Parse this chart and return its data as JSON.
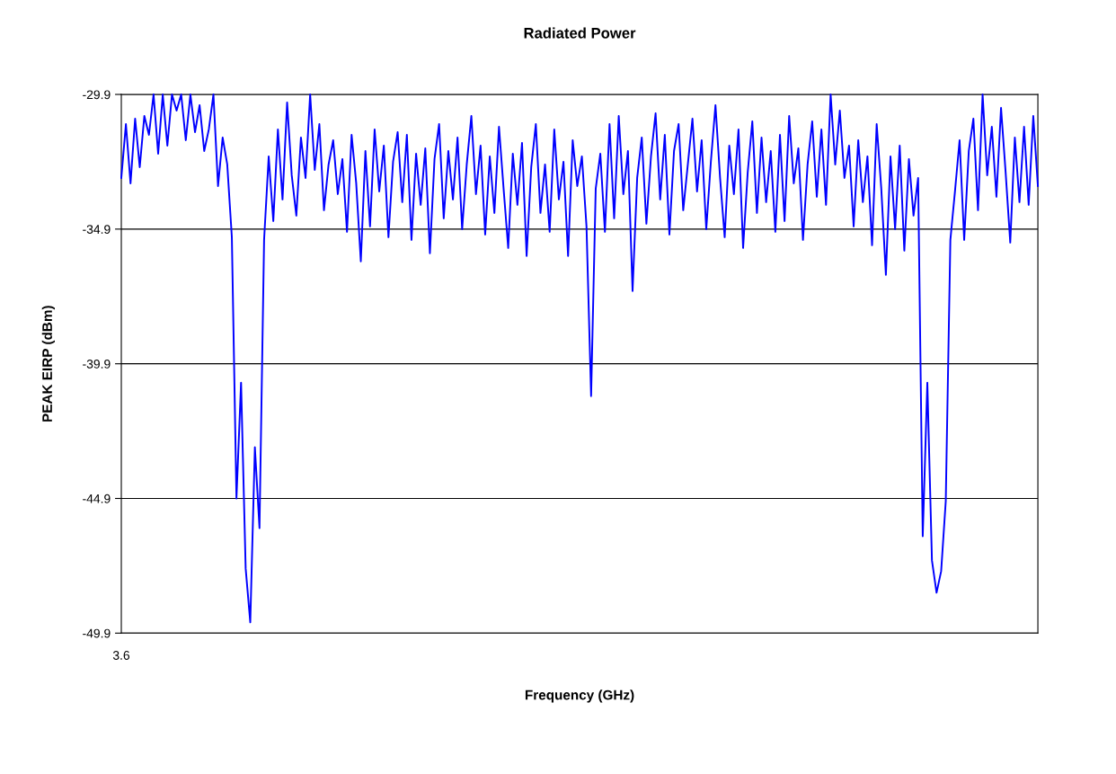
{
  "chart_data": {
    "type": "line",
    "title": "Radiated Power",
    "xlabel": "Frequency (GHz)",
    "ylabel": "PEAK EIRP (dBm)",
    "categories": [
      "3.6",
      null,
      null,
      null,
      null,
      null,
      null,
      null,
      null,
      null,
      null,
      null,
      null,
      null,
      null,
      null,
      null,
      null,
      null,
      null,
      null,
      null,
      null,
      null,
      null,
      null,
      null,
      null,
      null,
      null,
      null,
      null,
      null,
      null,
      null,
      null,
      null,
      null,
      null,
      null,
      null,
      null,
      null,
      null,
      null,
      null,
      null,
      null,
      null,
      null,
      null,
      null,
      null,
      null,
      null,
      null,
      null,
      null,
      null,
      null,
      null,
      null,
      null,
      null,
      null,
      null,
      null,
      null,
      null,
      null,
      null,
      null,
      null,
      null,
      null,
      null,
      null,
      null,
      null,
      null,
      null,
      null,
      null,
      null,
      null,
      null,
      null,
      null,
      null,
      null,
      null,
      null,
      null,
      null,
      null,
      null,
      null,
      null,
      null,
      null,
      null,
      null,
      null,
      null,
      null,
      null,
      null,
      null,
      null,
      null,
      null,
      null,
      null,
      null,
      null,
      null,
      null,
      null,
      null,
      null,
      null,
      null,
      null,
      null,
      null,
      null,
      null,
      null,
      null,
      null,
      null,
      null,
      null,
      null,
      null,
      null,
      null,
      null,
      null,
      null,
      null,
      null,
      null,
      null,
      null,
      null,
      null,
      null,
      null,
      null,
      null,
      null,
      null,
      null,
      null,
      null,
      null,
      null,
      null,
      null,
      null,
      null,
      null,
      null,
      null,
      null,
      null,
      null,
      null,
      null,
      null,
      null,
      null,
      null,
      null,
      null,
      null,
      null,
      null,
      null,
      null,
      null,
      null,
      null,
      null,
      null,
      null,
      null,
      null,
      null,
      null,
      null,
      null,
      null,
      null,
      null,
      null,
      null,
      null,
      null
    ],
    "series": [
      {
        "color": "#0000ff",
        "values": [
          -33.0,
          -31.0,
          -33.2,
          -30.8,
          -32.6,
          -30.7,
          -31.4,
          -29.9,
          -32.1,
          -29.9,
          -31.8,
          -29.9,
          -30.5,
          -29.9,
          -31.6,
          -29.9,
          -31.3,
          -30.3,
          -32.0,
          -31.2,
          -29.9,
          -33.3,
          -31.5,
          -32.5,
          -35.2,
          -44.9,
          -40.6,
          -47.5,
          -49.5,
          -43.0,
          -46.0,
          -35.3,
          -32.2,
          -34.6,
          -31.2,
          -33.8,
          -30.2,
          -32.9,
          -34.4,
          -31.5,
          -33.0,
          -29.9,
          -32.7,
          -31.0,
          -34.2,
          -32.5,
          -31.6,
          -33.6,
          -32.3,
          -35.0,
          -31.4,
          -33.2,
          -36.1,
          -32.0,
          -34.8,
          -31.2,
          -33.5,
          -31.8,
          -35.2,
          -32.4,
          -31.3,
          -33.9,
          -31.4,
          -35.3,
          -32.1,
          -34.0,
          -31.9,
          -35.8,
          -32.3,
          -31.0,
          -34.5,
          -32.0,
          -33.8,
          -31.5,
          -34.9,
          -32.5,
          -30.7,
          -33.6,
          -31.8,
          -35.1,
          -32.2,
          -34.3,
          -31.1,
          -33.4,
          -35.6,
          -32.1,
          -34.0,
          -31.7,
          -35.9,
          -32.6,
          -31.0,
          -34.3,
          -32.5,
          -35.0,
          -31.2,
          -33.8,
          -32.4,
          -35.9,
          -31.6,
          -33.3,
          -32.2,
          -34.8,
          -41.1,
          -33.4,
          -32.1,
          -35.0,
          -31.0,
          -34.5,
          -30.7,
          -33.6,
          -32.0,
          -37.2,
          -33.0,
          -31.5,
          -34.7,
          -32.2,
          -30.6,
          -33.8,
          -31.4,
          -35.1,
          -32.0,
          -31.0,
          -34.2,
          -32.5,
          -30.8,
          -33.5,
          -31.6,
          -34.9,
          -32.4,
          -30.3,
          -33.0,
          -35.2,
          -31.8,
          -33.6,
          -31.2,
          -35.6,
          -32.8,
          -30.9,
          -34.3,
          -31.5,
          -33.9,
          -32.0,
          -35.0,
          -31.4,
          -34.6,
          -30.7,
          -33.2,
          -31.9,
          -35.3,
          -32.5,
          -30.9,
          -33.7,
          -31.2,
          -34.0,
          -29.9,
          -32.5,
          -30.5,
          -33.0,
          -31.8,
          -34.8,
          -31.6,
          -33.9,
          -32.2,
          -35.5,
          -31.0,
          -33.4,
          -36.6,
          -32.2,
          -34.9,
          -31.8,
          -35.7,
          -32.3,
          -34.4,
          -33.0,
          -46.3,
          -40.6,
          -47.2,
          -48.4,
          -47.6,
          -45.0,
          -35.3,
          -33.5,
          -31.6,
          -35.3,
          -32.0,
          -30.8,
          -34.2,
          -29.9,
          -32.9,
          -31.1,
          -33.7,
          -30.4,
          -32.8,
          -35.4,
          -31.5,
          -33.9,
          -31.1,
          -34.0,
          -30.7,
          -33.3
        ]
      }
    ],
    "ylim": [
      -49.9,
      -29.9
    ],
    "yticks": [
      -29.9,
      -34.9,
      -39.9,
      -44.9,
      -49.9
    ],
    "grid": "y"
  }
}
